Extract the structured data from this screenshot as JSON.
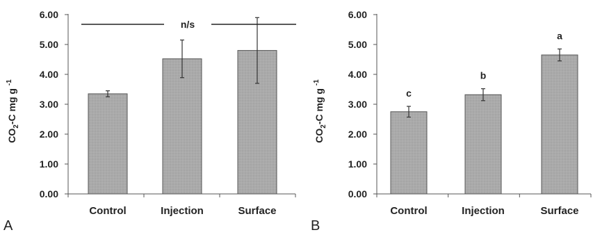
{
  "chart_data": [
    {
      "type": "bar",
      "panel_label": "A",
      "categories": [
        "Control",
        "Injection",
        "Surface"
      ],
      "values": [
        3.35,
        4.52,
        4.8
      ],
      "error": [
        0.1,
        0.63,
        1.1
      ],
      "ylabel": "CO2-C mg g -1",
      "ylim": [
        0,
        6
      ],
      "yticks": [
        "0.00",
        "1.00",
        "2.00",
        "3.00",
        "4.00",
        "5.00",
        "6.00"
      ],
      "significance_line": "n/s",
      "bar_color": "#aaaaaa",
      "grid": false
    },
    {
      "type": "bar",
      "panel_label": "B",
      "categories": [
        "Control",
        "Injection",
        "Surface"
      ],
      "values": [
        2.75,
        3.32,
        4.65
      ],
      "error": [
        0.18,
        0.2,
        0.2
      ],
      "letters": [
        "c",
        "b",
        "a"
      ],
      "ylabel": "CO2-C mg g -1",
      "ylim": [
        0,
        6
      ],
      "yticks": [
        "0.00",
        "1.00",
        "2.00",
        "3.00",
        "4.00",
        "5.00",
        "6.00"
      ],
      "bar_color": "#aaaaaa",
      "grid": false
    }
  ]
}
